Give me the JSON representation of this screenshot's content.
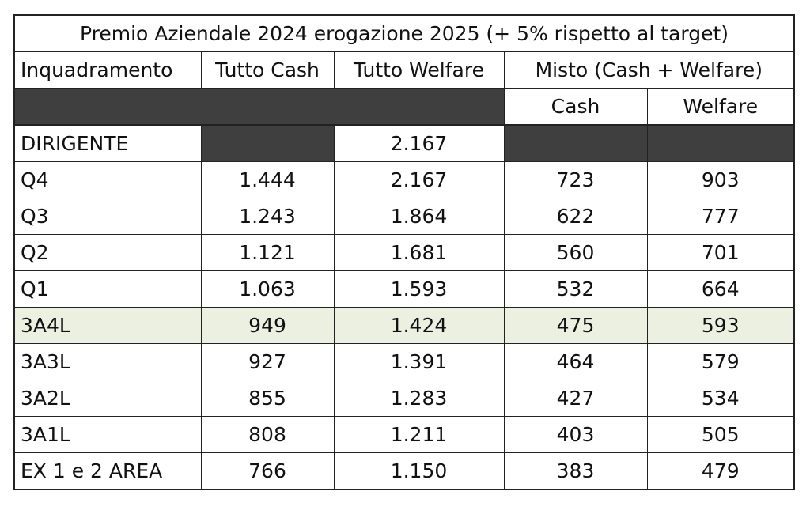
{
  "title": "Premio Aziendale 2024 erogazione 2025 (+ 5% rispetto al target)",
  "headers": {
    "inquadramento": "Inquadramento",
    "tutto_cash": "Tutto Cash",
    "tutto_welfare": "Tutto Welfare",
    "misto": "Misto (Cash + Welfare)",
    "misto_cash": "Cash",
    "misto_welfare": "Welfare"
  },
  "colors": {
    "shaded_cell": "#3f3f3f",
    "highlight_row": "#ecf0e1"
  },
  "rows": [
    {
      "label": "DIRIGENTE",
      "tutto_cash": "",
      "tutto_welfare": "2.167",
      "misto_cash": "",
      "misto_welfare": ""
    },
    {
      "label": "Q4",
      "tutto_cash": "1.444",
      "tutto_welfare": "2.167",
      "misto_cash": "723",
      "misto_welfare": "903"
    },
    {
      "label": "Q3",
      "tutto_cash": "1.243",
      "tutto_welfare": "1.864",
      "misto_cash": "622",
      "misto_welfare": "777"
    },
    {
      "label": "Q2",
      "tutto_cash": "1.121",
      "tutto_welfare": "1.681",
      "misto_cash": "560",
      "misto_welfare": "701"
    },
    {
      "label": "Q1",
      "tutto_cash": "1.063",
      "tutto_welfare": "1.593",
      "misto_cash": "532",
      "misto_welfare": "664"
    },
    {
      "label": "3A4L",
      "tutto_cash": "949",
      "tutto_welfare": "1.424",
      "misto_cash": "475",
      "misto_welfare": "593",
      "highlighted": true
    },
    {
      "label": "3A3L",
      "tutto_cash": "927",
      "tutto_welfare": "1.391",
      "misto_cash": "464",
      "misto_welfare": "579"
    },
    {
      "label": "3A2L",
      "tutto_cash": "855",
      "tutto_welfare": "1.283",
      "misto_cash": "427",
      "misto_welfare": "534"
    },
    {
      "label": "3A1L",
      "tutto_cash": "808",
      "tutto_welfare": "1.211",
      "misto_cash": "403",
      "misto_welfare": "505"
    },
    {
      "label": "EX 1 e 2 AREA",
      "tutto_cash": "766",
      "tutto_welfare": "1.150",
      "misto_cash": "383",
      "misto_welfare": "479"
    }
  ]
}
